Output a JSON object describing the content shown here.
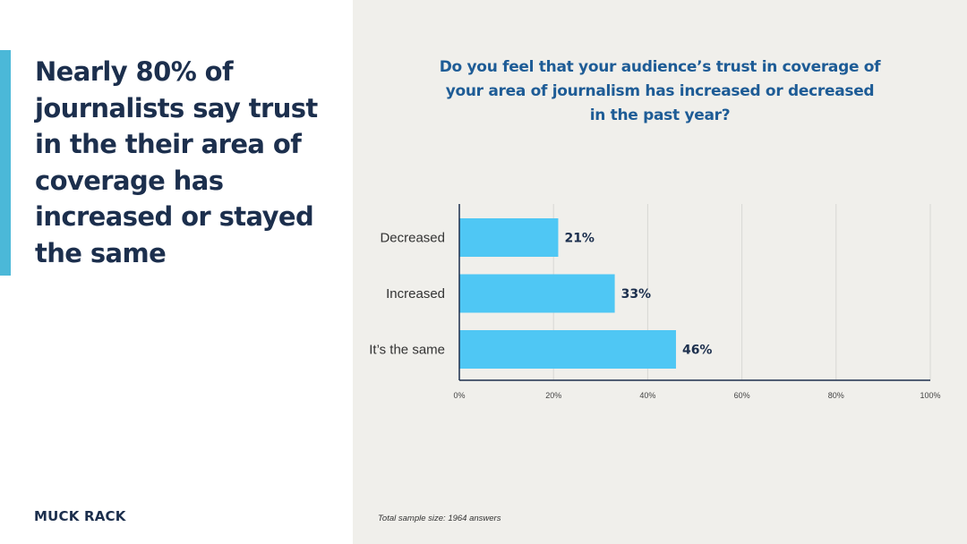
{
  "headline": "Nearly 80% of journalists say trust in the their area of coverage has increased or stayed the same",
  "brand": "MUCK RACK",
  "footnote": "Total sample size: 1964 answers",
  "colors": {
    "accent": "#4bb8d8",
    "bar": "#4fc7f4",
    "headline": "#1c2f4d",
    "question": "#1e5c96",
    "panel": "#f0efeb"
  },
  "chart_data": {
    "type": "bar",
    "orientation": "horizontal",
    "title": "Do you feel that your audience’s trust in coverage of your area of journalism has increased or decreased in the past year?",
    "categories": [
      "Decreased",
      "Increased",
      "It’s the same"
    ],
    "values": [
      21,
      33,
      46
    ],
    "value_labels": [
      "21%",
      "33%",
      "46%"
    ],
    "xlim": [
      0,
      100
    ],
    "xticks": [
      0,
      20,
      40,
      60,
      80,
      100
    ],
    "xtick_labels": [
      "0%",
      "20%",
      "40%",
      "60%",
      "80%",
      "100%"
    ],
    "xlabel": "",
    "ylabel": "",
    "grid": true
  }
}
